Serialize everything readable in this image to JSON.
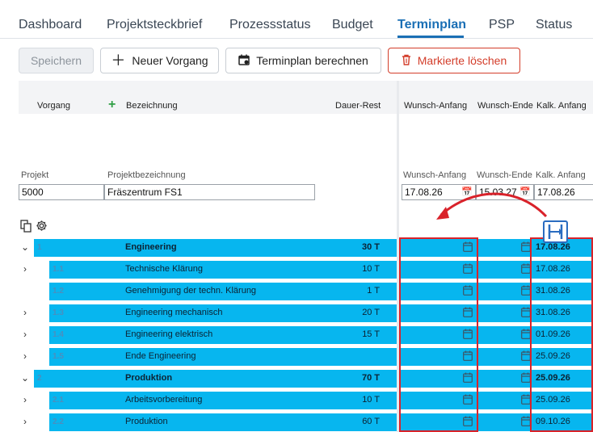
{
  "tabs": [
    {
      "label": "Dashboard"
    },
    {
      "label": "Projektsteckbrief"
    },
    {
      "label": "Prozessstatus"
    },
    {
      "label": "Budget"
    },
    {
      "label": "Terminplan"
    },
    {
      "label": "PSP"
    },
    {
      "label": "Status"
    }
  ],
  "active_tab": "Terminplan",
  "toolbar": {
    "save": "Speichern",
    "new_task": "Neuer Vorgang",
    "calculate": "Terminplan berechnen",
    "delete_marked": "Markierte löschen"
  },
  "columns": {
    "vorgang": "Vorgang",
    "bezeichnung": "Bezeichnung",
    "dauer_rest": "Dauer-Rest",
    "wunsch_anfang": "Wunsch-Anfang",
    "wunsch_ende": "Wunsch-Ende",
    "kalk_anfang": "Kalk. Anfang"
  },
  "project": {
    "projekt_label": "Projekt",
    "projektbezeichnung_label": "Projektbezeichnung",
    "wunsch_anfang_label": "Wunsch-Anfang",
    "wunsch_ende_label": "Wunsch-Ende",
    "kalk_anfang_label": "Kalk. Anfang",
    "projekt": "5000",
    "projektbezeichnung": "Fräszentrum FS1",
    "wunsch_anfang": "17.08.26",
    "wunsch_ende": "15.03.27",
    "kalk_anfang": "17.08.26"
  },
  "rows": [
    {
      "id": "1",
      "name": "Engineering",
      "dur": "30 T",
      "kalk": "17.08.26",
      "level": 0,
      "chevron": "v",
      "bold": true
    },
    {
      "id": "1.1",
      "name": "Technische Klärung",
      "dur": "10 T",
      "kalk": "17.08.26",
      "level": 1,
      "chevron": ">",
      "bold": false
    },
    {
      "id": "1.2",
      "name": "Genehmigung der techn. Klärung",
      "dur": "1 T",
      "kalk": "31.08.26",
      "level": 1,
      "chevron": "",
      "bold": false
    },
    {
      "id": "1.3",
      "name": "Engineering mechanisch",
      "dur": "20 T",
      "kalk": "31.08.26",
      "level": 1,
      "chevron": ">",
      "bold": false
    },
    {
      "id": "1.4",
      "name": "Engineering elektrisch",
      "dur": "15 T",
      "kalk": "01.09.26",
      "level": 1,
      "chevron": ">",
      "bold": false
    },
    {
      "id": "1.5",
      "name": "Ende Engineering",
      "dur": "",
      "kalk": "25.09.26",
      "level": 1,
      "chevron": ">",
      "bold": false
    },
    {
      "id": "2",
      "name": "Produktion",
      "dur": "70 T",
      "kalk": "25.09.26",
      "level": 0,
      "chevron": "v",
      "bold": true
    },
    {
      "id": "2.1",
      "name": "Arbeitsvorbereitung",
      "dur": "10 T",
      "kalk": "25.09.26",
      "level": 1,
      "chevron": ">",
      "bold": false
    },
    {
      "id": "2.2",
      "name": "Produktion",
      "dur": "60 T",
      "kalk": "09.10.26",
      "level": 1,
      "chevron": ">",
      "bold": false
    }
  ],
  "icons": {
    "plus": "plus-icon",
    "calendar": "calendar-icon",
    "trash": "trash-icon",
    "copy": "copy-icon",
    "gear": "gear-icon",
    "chevron_down": "chevron-down-icon",
    "chevron_right": "chevron-right-icon",
    "column_swap": "column-swap-icon"
  },
  "colors": {
    "accent": "#1a6fb5",
    "row_highlight": "#07b6ef",
    "danger": "#d33d2a",
    "frame": "#d9222a",
    "add": "#2e9e44"
  }
}
